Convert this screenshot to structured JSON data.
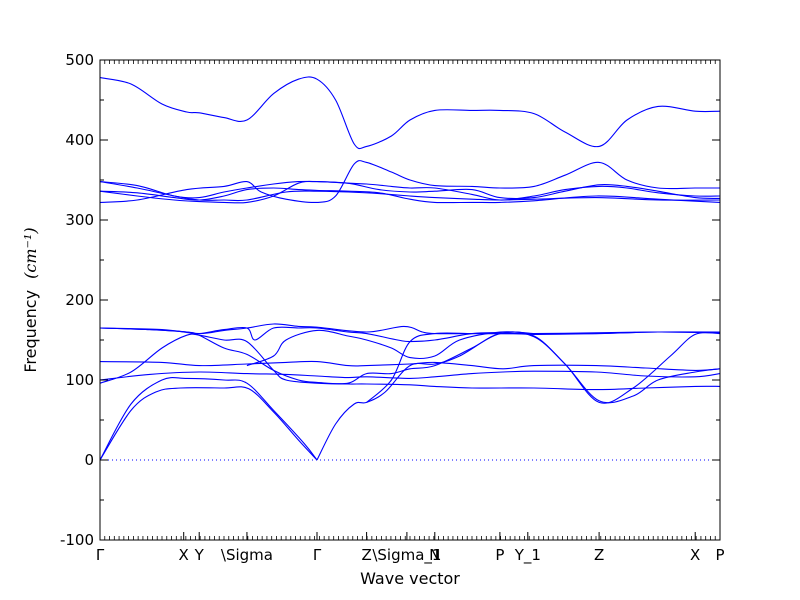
{
  "chart_data": {
    "type": "line",
    "title": "",
    "xlabel": "Wave vector",
    "ylabel": "Frequency",
    "ylabel_unit_math": "(cm⁻¹)",
    "ylim": [
      -100,
      500
    ],
    "yticks": [
      -100,
      0,
      100,
      200,
      300,
      400,
      500
    ],
    "xlim": [
      0,
      1
    ],
    "xticks": [
      {
        "pos": 0.0,
        "label": "Γ",
        "math": true
      },
      {
        "pos": 0.135,
        "label": "X",
        "math": false
      },
      {
        "pos": 0.16,
        "label": "Y",
        "math": false
      },
      {
        "pos": 0.237,
        "label": "\\Sigma",
        "math": false
      },
      {
        "pos": 0.35,
        "label": "Γ",
        "math": true
      },
      {
        "pos": 0.43,
        "label": "Z",
        "math": false
      },
      {
        "pos": 0.495,
        "label": "\\Sigma_1",
        "math": false
      },
      {
        "pos": 0.54,
        "label": "N",
        "math": false
      },
      {
        "pos": 0.645,
        "label": "P",
        "math": false
      },
      {
        "pos": 0.69,
        "label": "Y_1",
        "math": false
      },
      {
        "pos": 0.805,
        "label": "Z",
        "math": false
      },
      {
        "pos": 0.96,
        "label": "X",
        "math": false
      },
      {
        "pos": 1.0,
        "label": "P",
        "math": false
      }
    ],
    "zero_line": {
      "y": 0,
      "style": "dotted"
    },
    "line_color": "#0000ff",
    "series": [
      {
        "points": [
          [
            0,
            0
          ],
          [
            0.05,
            62
          ],
          [
            0.09,
            85
          ],
          [
            0.13,
            90
          ],
          [
            0.2,
            90
          ],
          [
            0.24,
            89
          ],
          [
            0.28,
            60
          ],
          [
            0.32,
            25
          ],
          [
            0.35,
            0
          ]
        ]
      },
      {
        "points": [
          [
            0,
            0
          ],
          [
            0.05,
            70
          ],
          [
            0.1,
            100
          ],
          [
            0.14,
            102
          ],
          [
            0.2,
            100
          ],
          [
            0.237,
            96
          ],
          [
            0.28,
            62
          ],
          [
            0.33,
            20
          ],
          [
            0.35,
            0
          ]
        ]
      },
      {
        "points": [
          [
            0,
            100
          ],
          [
            0.08,
            107
          ],
          [
            0.16,
            110
          ],
          [
            0.237,
            108
          ],
          [
            0.3,
            107
          ],
          [
            0.35,
            105
          ],
          [
            0.4,
            103
          ],
          [
            0.43,
            104
          ],
          [
            0.5,
            102
          ],
          [
            0.54,
            104
          ],
          [
            0.6,
            108
          ],
          [
            0.65,
            110
          ],
          [
            0.7,
            111
          ],
          [
            0.8,
            110
          ],
          [
            0.88,
            105
          ],
          [
            0.96,
            104
          ],
          [
            1,
            108
          ]
        ]
      },
      {
        "points": [
          [
            0,
            96
          ],
          [
            0.05,
            110
          ],
          [
            0.1,
            140
          ],
          [
            0.14,
            156
          ],
          [
            0.16,
            156
          ],
          [
            0.2,
            150
          ],
          [
            0.237,
            148
          ],
          [
            0.28,
            112
          ],
          [
            0.3,
            100
          ],
          [
            0.35,
            96
          ],
          [
            0.4,
            95
          ],
          [
            0.43,
            95
          ],
          [
            0.5,
            94
          ],
          [
            0.54,
            92
          ],
          [
            0.6,
            90
          ],
          [
            0.7,
            90
          ],
          [
            0.8,
            88
          ],
          [
            0.88,
            90
          ],
          [
            0.96,
            92
          ],
          [
            1,
            92
          ]
        ]
      },
      {
        "points": [
          [
            0,
            123
          ],
          [
            0.1,
            122
          ],
          [
            0.16,
            118
          ],
          [
            0.237,
            120
          ],
          [
            0.3,
            122
          ],
          [
            0.35,
            123
          ],
          [
            0.4,
            118
          ],
          [
            0.43,
            118
          ],
          [
            0.5,
            120
          ],
          [
            0.54,
            122
          ],
          [
            0.6,
            118
          ],
          [
            0.65,
            114
          ],
          [
            0.7,
            118
          ],
          [
            0.8,
            118
          ],
          [
            0.88,
            115
          ],
          [
            0.96,
            112
          ],
          [
            1,
            114
          ]
        ]
      },
      {
        "points": [
          [
            0,
            165
          ],
          [
            0.08,
            163
          ],
          [
            0.14,
            160
          ],
          [
            0.16,
            156
          ],
          [
            0.2,
            140
          ],
          [
            0.237,
            132
          ],
          [
            0.28,
            112
          ],
          [
            0.32,
            100
          ],
          [
            0.35,
            97
          ],
          [
            0.4,
            96
          ],
          [
            0.43,
            108
          ],
          [
            0.47,
            108
          ],
          [
            0.5,
            114
          ],
          [
            0.54,
            118
          ],
          [
            0.6,
            140
          ],
          [
            0.645,
            158
          ],
          [
            0.7,
            155
          ],
          [
            0.75,
            120
          ],
          [
            0.805,
            74
          ],
          [
            0.86,
            80
          ],
          [
            0.9,
            100
          ],
          [
            0.96,
            110
          ],
          [
            1,
            114
          ]
        ]
      },
      {
        "points": [
          [
            0,
            165
          ],
          [
            0.08,
            163
          ],
          [
            0.14,
            160
          ],
          [
            0.16,
            158
          ],
          [
            0.2,
            163
          ],
          [
            0.237,
            165
          ],
          [
            0.25,
            150
          ],
          [
            0.28,
            165
          ],
          [
            0.32,
            165
          ],
          [
            0.35,
            165
          ],
          [
            0.4,
            160
          ],
          [
            0.43,
            158
          ],
          [
            0.48,
            150
          ],
          [
            0.5,
            148
          ],
          [
            0.54,
            150
          ],
          [
            0.6,
            158
          ],
          [
            0.645,
            159
          ],
          [
            0.7,
            157
          ],
          [
            0.8,
            158
          ],
          [
            0.9,
            160
          ],
          [
            1,
            159
          ]
        ]
      },
      {
        "points": [
          [
            0,
            165
          ],
          [
            0.1,
            163
          ],
          [
            0.16,
            158
          ],
          [
            0.2,
            162
          ],
          [
            0.237,
            165
          ],
          [
            0.28,
            170
          ],
          [
            0.32,
            167
          ],
          [
            0.35,
            166
          ],
          [
            0.43,
            160
          ],
          [
            0.49,
            167
          ],
          [
            0.52,
            160
          ],
          [
            0.54,
            158
          ],
          [
            0.6,
            158
          ],
          [
            0.7,
            158
          ],
          [
            0.8,
            159
          ],
          [
            0.9,
            160
          ],
          [
            1,
            160
          ]
        ]
      },
      {
        "points": [
          [
            0.237,
            118
          ],
          [
            0.28,
            130
          ],
          [
            0.3,
            150
          ],
          [
            0.35,
            162
          ],
          [
            0.4,
            155
          ],
          [
            0.43,
            150
          ],
          [
            0.47,
            140
          ],
          [
            0.5,
            128
          ],
          [
            0.54,
            130
          ],
          [
            0.58,
            150
          ],
          [
            0.645,
            160
          ],
          [
            0.7,
            158
          ]
        ]
      },
      {
        "points": [
          [
            0.35,
            0
          ],
          [
            0.38,
            45
          ],
          [
            0.41,
            70
          ],
          [
            0.43,
            72
          ],
          [
            0.46,
            85
          ],
          [
            0.5,
            118
          ],
          [
            0.54,
            120
          ],
          [
            0.58,
            130
          ],
          [
            0.645,
            158
          ],
          [
            0.7,
            154
          ],
          [
            0.75,
            120
          ],
          [
            0.805,
            72
          ],
          [
            0.86,
            90
          ],
          [
            0.92,
            130
          ],
          [
            0.96,
            157
          ],
          [
            1,
            158
          ]
        ]
      },
      {
        "points": [
          [
            0.43,
            72
          ],
          [
            0.47,
            100
          ],
          [
            0.5,
            148
          ],
          [
            0.54,
            158
          ],
          [
            0.6,
            158
          ],
          [
            0.645,
            158
          ],
          [
            0.7,
            158
          ],
          [
            0.75,
            158
          ],
          [
            0.805,
            158
          ],
          [
            0.9,
            160
          ],
          [
            1,
            159
          ]
        ]
      },
      {
        "points": [
          [
            0,
            322
          ],
          [
            0.06,
            325
          ],
          [
            0.14,
            338
          ],
          [
            0.2,
            342
          ],
          [
            0.237,
            348
          ],
          [
            0.26,
            335
          ],
          [
            0.3,
            326
          ],
          [
            0.35,
            322
          ],
          [
            0.38,
            330
          ],
          [
            0.41,
            370
          ],
          [
            0.43,
            372
          ],
          [
            0.47,
            360
          ],
          [
            0.5,
            350
          ],
          [
            0.54,
            343
          ],
          [
            0.6,
            342
          ],
          [
            0.645,
            340
          ],
          [
            0.7,
            342
          ],
          [
            0.75,
            356
          ],
          [
            0.805,
            372
          ],
          [
            0.85,
            350
          ],
          [
            0.9,
            340
          ],
          [
            0.96,
            340
          ],
          [
            1,
            340
          ]
        ]
      },
      {
        "points": [
          [
            0,
            348
          ],
          [
            0.06,
            340
          ],
          [
            0.12,
            330
          ],
          [
            0.16,
            325
          ],
          [
            0.2,
            325
          ],
          [
            0.237,
            325
          ],
          [
            0.3,
            335
          ],
          [
            0.35,
            336
          ],
          [
            0.4,
            335
          ],
          [
            0.45,
            333
          ],
          [
            0.5,
            330
          ],
          [
            0.54,
            328
          ],
          [
            0.6,
            326
          ],
          [
            0.645,
            325
          ],
          [
            0.7,
            326
          ],
          [
            0.8,
            328
          ],
          [
            0.9,
            325
          ],
          [
            1,
            325
          ]
        ]
      },
      {
        "points": [
          [
            0,
            336
          ],
          [
            0.06,
            330
          ],
          [
            0.12,
            325
          ],
          [
            0.16,
            323
          ],
          [
            0.2,
            322
          ],
          [
            0.237,
            322
          ],
          [
            0.28,
            330
          ],
          [
            0.32,
            346
          ],
          [
            0.35,
            348
          ],
          [
            0.4,
            346
          ],
          [
            0.43,
            345
          ],
          [
            0.47,
            342
          ],
          [
            0.5,
            340
          ],
          [
            0.54,
            340
          ],
          [
            0.6,
            332
          ],
          [
            0.645,
            325
          ],
          [
            0.7,
            330
          ],
          [
            0.75,
            338
          ],
          [
            0.805,
            342
          ],
          [
            0.85,
            340
          ],
          [
            0.9,
            334
          ],
          [
            0.96,
            330
          ],
          [
            1,
            330
          ]
        ]
      },
      {
        "points": [
          [
            0,
            336
          ],
          [
            0.06,
            334
          ],
          [
            0.12,
            328
          ],
          [
            0.16,
            325
          ],
          [
            0.2,
            330
          ],
          [
            0.237,
            338
          ],
          [
            0.28,
            340
          ],
          [
            0.32,
            338
          ],
          [
            0.35,
            337
          ],
          [
            0.4,
            336
          ],
          [
            0.45,
            334
          ],
          [
            0.5,
            326
          ],
          [
            0.54,
            322
          ],
          [
            0.6,
            322
          ],
          [
            0.645,
            322
          ],
          [
            0.7,
            324
          ],
          [
            0.8,
            330
          ],
          [
            0.9,
            326
          ],
          [
            1,
            322
          ]
        ]
      },
      {
        "points": [
          [
            0,
            348
          ],
          [
            0.06,
            343
          ],
          [
            0.12,
            330
          ],
          [
            0.16,
            328
          ],
          [
            0.2,
            335
          ],
          [
            0.237,
            340
          ],
          [
            0.28,
            345
          ],
          [
            0.32,
            348
          ],
          [
            0.35,
            348
          ],
          [
            0.4,
            346
          ],
          [
            0.45,
            338
          ],
          [
            0.5,
            335
          ],
          [
            0.54,
            336
          ],
          [
            0.6,
            338
          ],
          [
            0.645,
            328
          ],
          [
            0.7,
            328
          ],
          [
            0.75,
            336
          ],
          [
            0.805,
            344
          ],
          [
            0.85,
            342
          ],
          [
            0.9,
            336
          ],
          [
            0.96,
            328
          ],
          [
            1,
            327
          ]
        ]
      },
      {
        "points": [
          [
            0,
            478
          ],
          [
            0.05,
            470
          ],
          [
            0.1,
            445
          ],
          [
            0.14,
            435
          ],
          [
            0.16,
            434
          ],
          [
            0.2,
            428
          ],
          [
            0.237,
            425
          ],
          [
            0.28,
            458
          ],
          [
            0.32,
            476
          ],
          [
            0.35,
            476
          ],
          [
            0.38,
            450
          ],
          [
            0.41,
            395
          ],
          [
            0.43,
            392
          ],
          [
            0.47,
            405
          ],
          [
            0.5,
            425
          ],
          [
            0.54,
            437
          ],
          [
            0.6,
            437
          ],
          [
            0.645,
            437
          ],
          [
            0.7,
            433
          ],
          [
            0.75,
            410
          ],
          [
            0.805,
            392
          ],
          [
            0.85,
            425
          ],
          [
            0.9,
            442
          ],
          [
            0.96,
            436
          ],
          [
            1,
            436
          ]
        ]
      }
    ]
  }
}
